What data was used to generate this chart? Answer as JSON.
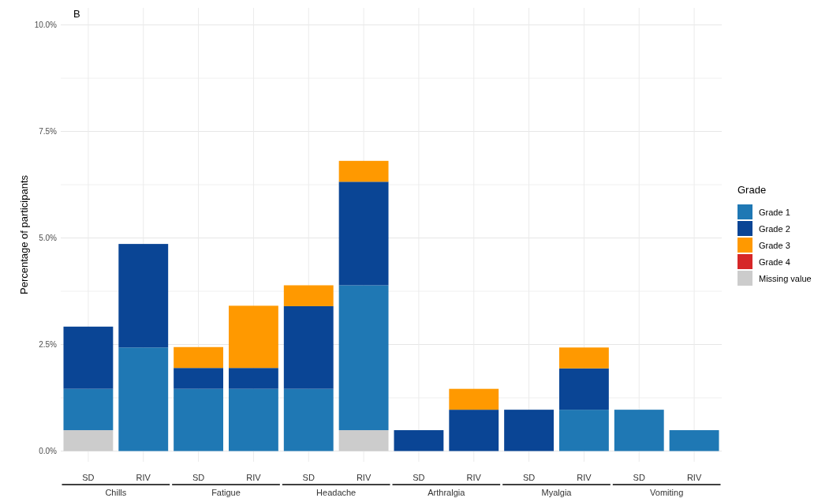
{
  "chart_data": {
    "type": "bar",
    "title": "B",
    "ylabel": "Percentage of participants",
    "legend_title": "Grade",
    "stacked": true,
    "legend": "right",
    "grid": true,
    "categories": [
      "SD",
      "RIV",
      "SD",
      "RIV",
      "SD",
      "RIV",
      "SD",
      "RIV",
      "SD",
      "RIV",
      "SD",
      "RIV"
    ],
    "annotations": [
      "Chills",
      "Fatigue",
      "Headache",
      "Arthralgia",
      "Myalgia",
      "Vomiting"
    ],
    "series": [
      {
        "name": "Missing value",
        "color": "#cccccc",
        "values": [
          0.49,
          0,
          0,
          0,
          0,
          0.49,
          0,
          0,
          0,
          0,
          0,
          0
        ]
      },
      {
        "name": "Grade 1",
        "color": "#1f78b4",
        "values": [
          0.97,
          2.43,
          1.46,
          1.46,
          1.46,
          3.4,
          0,
          0,
          0,
          0.97,
          0.97,
          0.49
        ]
      },
      {
        "name": "Grade 2",
        "color": "#0a4595",
        "values": [
          1.46,
          2.43,
          0.49,
          0.49,
          1.94,
          2.43,
          0.49,
          0.97,
          0.97,
          0.97,
          0,
          0
        ]
      },
      {
        "name": "Grade 3",
        "color": "#ff9900",
        "values": [
          0,
          0,
          0.49,
          1.46,
          0.49,
          0.49,
          0,
          0.49,
          0,
          0.49,
          0,
          0
        ]
      },
      {
        "name": "Grade 4",
        "color": "#d62728",
        "values": [
          0,
          0,
          0,
          0,
          0,
          0,
          0,
          0,
          0,
          0,
          0,
          0
        ]
      }
    ],
    "ylim": [
      -0.25,
      10.4
    ],
    "yticks": [
      {
        "value": 0,
        "label": "0.0%"
      },
      {
        "value": 1.25,
        "label": null
      },
      {
        "value": 2.5,
        "label": "2.5%"
      },
      {
        "value": 3.75,
        "label": null
      },
      {
        "value": 5,
        "label": "5.0%"
      },
      {
        "value": 6.25,
        "label": null
      },
      {
        "value": 7.5,
        "label": "7.5%"
      },
      {
        "value": 8.75,
        "label": null
      },
      {
        "value": 10,
        "label": "10.0%"
      }
    ]
  }
}
